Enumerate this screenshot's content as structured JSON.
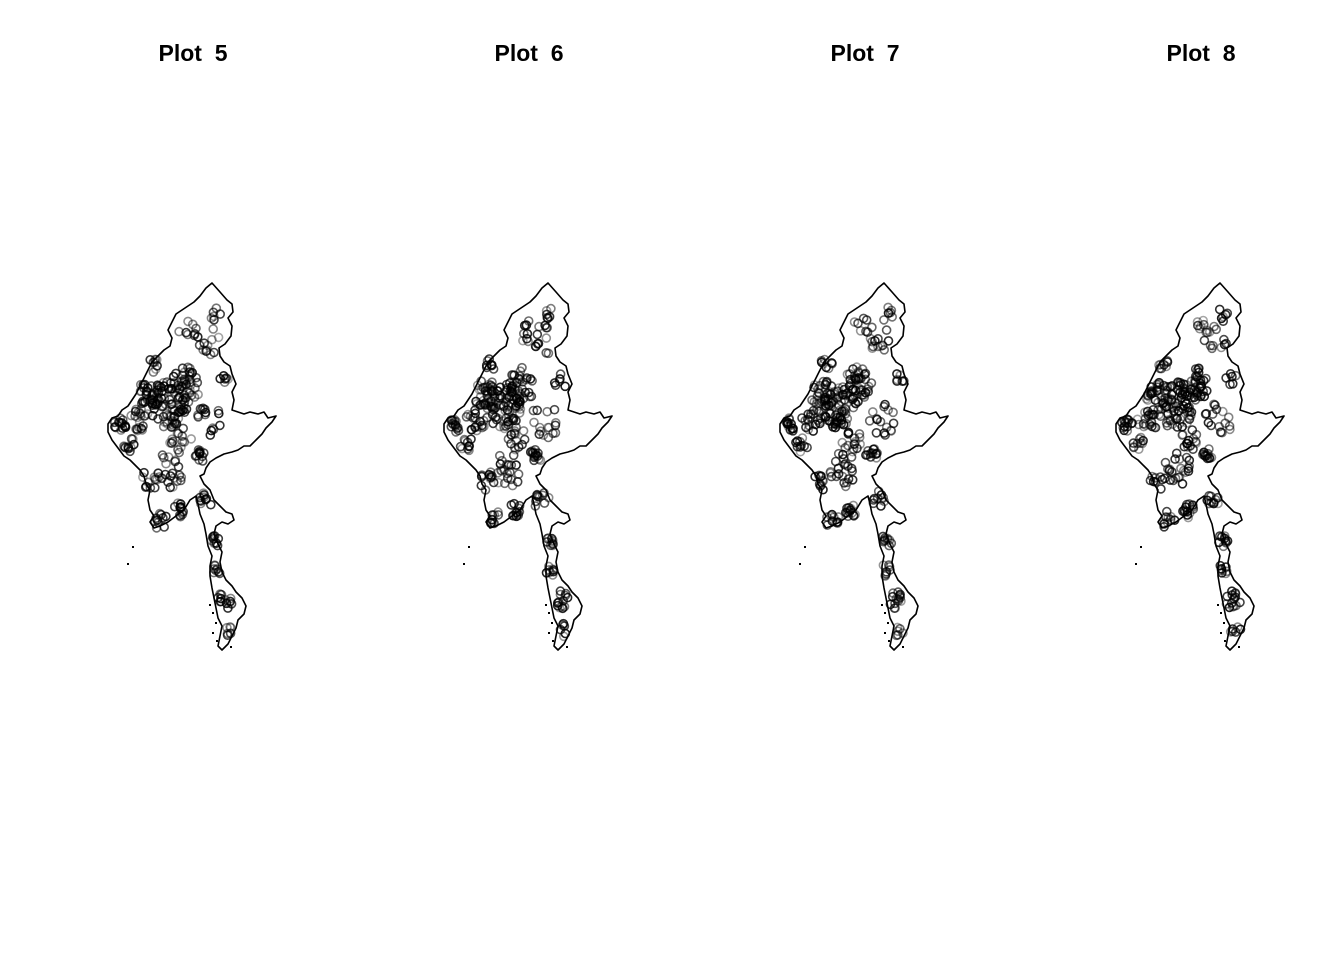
{
  "colors": {
    "background": "#ffffff",
    "outline": "#000000",
    "points": "#000000"
  },
  "panels": [
    {
      "title": "Plot  5"
    },
    {
      "title": "Plot  6"
    },
    {
      "title": "Plot  7"
    },
    {
      "title": "Plot  8"
    }
  ]
}
